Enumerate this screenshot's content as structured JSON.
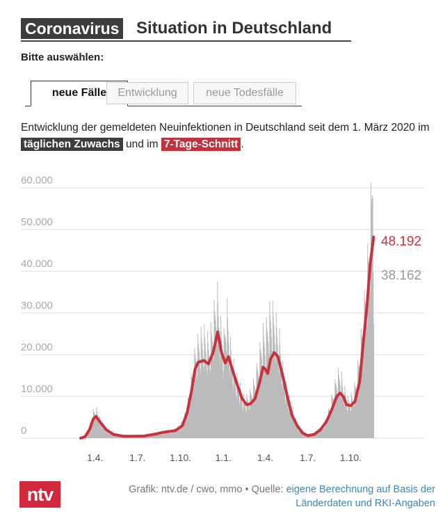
{
  "header": {
    "tag": "Coronavirus",
    "title": "Situation in Deutschland"
  },
  "selector": {
    "label": "Bitte auswählen:",
    "tabs": [
      {
        "label": "neue Fälle",
        "active": true
      },
      {
        "label": "Entwicklung",
        "active": false
      },
      {
        "label": "neue Todesfälle",
        "active": false
      }
    ]
  },
  "description": {
    "before": "Entwicklung der gemeldeten Neuinfektionen in Deutschland seit dem 1. März 2020 im ",
    "highlight_daily": "täglichen Zuwachs",
    "middle": " und im ",
    "highlight_avg": "7-Tage-Schnitt",
    "after": "."
  },
  "colors": {
    "daily_bars": "#bbbbbb",
    "average_line": "#c8323c",
    "grid": "#dddddd",
    "axis_text": "#aaaaaa"
  },
  "chart_data": {
    "type": "bar",
    "x_start": "2020-03-01",
    "x_end": "2021-11-20",
    "ylim": [
      0,
      65000
    ],
    "y_ticks": [
      0,
      10000,
      20000,
      30000,
      40000,
      50000,
      60000
    ],
    "y_tick_labels": [
      "0",
      "10.000",
      "20.000",
      "30.000",
      "40.000",
      "50.000",
      "60.000"
    ],
    "x_ticks": [
      "2020-04-01",
      "2020-07-01",
      "2020-10-01",
      "2021-01-01",
      "2021-04-01",
      "2021-07-01",
      "2021-10-01"
    ],
    "x_tick_labels": [
      "1.4.",
      "1.7.",
      "1.10.",
      "1.1.",
      "1.4.",
      "1.7.",
      "1.10."
    ],
    "grid": true,
    "series": [
      {
        "type": "bar",
        "points": [
          [
            "2020-03-01",
            0
          ],
          [
            "2020-03-10",
            400
          ],
          [
            "2020-03-20",
            2500
          ],
          [
            "2020-03-27",
            5500
          ],
          [
            "2020-04-03",
            6200
          ],
          [
            "2020-04-10",
            4500
          ],
          [
            "2020-04-20",
            2500
          ],
          [
            "2020-05-01",
            1200
          ],
          [
            "2020-05-15",
            700
          ],
          [
            "2020-06-01",
            500
          ],
          [
            "2020-06-20",
            700
          ],
          [
            "2020-07-01",
            450
          ],
          [
            "2020-07-20",
            600
          ],
          [
            "2020-08-10",
            1100
          ],
          [
            "2020-08-25",
            1500
          ],
          [
            "2020-09-10",
            1500
          ],
          [
            "2020-09-25",
            2200
          ],
          [
            "2020-10-05",
            3500
          ],
          [
            "2020-10-15",
            6500
          ],
          [
            "2020-10-25",
            13000
          ],
          [
            "2020-11-01",
            18000
          ],
          [
            "2020-11-10",
            21000
          ],
          [
            "2020-11-20",
            22000
          ],
          [
            "2020-12-01",
            20000
          ],
          [
            "2020-12-10",
            25000
          ],
          [
            "2020-12-18",
            31000
          ],
          [
            "2020-12-25",
            24000
          ],
          [
            "2021-01-01",
            20000
          ],
          [
            "2021-01-08",
            28000
          ],
          [
            "2021-01-15",
            20000
          ],
          [
            "2021-01-25",
            14000
          ],
          [
            "2021-02-05",
            11000
          ],
          [
            "2021-02-15",
            8000
          ],
          [
            "2021-02-25",
            9000
          ],
          [
            "2021-03-08",
            12000
          ],
          [
            "2021-03-18",
            17000
          ],
          [
            "2021-03-25",
            22000
          ],
          [
            "2021-04-01",
            22000
          ],
          [
            "2021-04-08",
            26000
          ],
          [
            "2021-04-15",
            27000
          ],
          [
            "2021-04-22",
            25000
          ],
          [
            "2021-05-01",
            21000
          ],
          [
            "2021-05-10",
            13000
          ],
          [
            "2021-05-20",
            9000
          ],
          [
            "2021-06-01",
            5000
          ],
          [
            "2021-06-10",
            2500
          ],
          [
            "2021-06-25",
            800
          ],
          [
            "2021-07-10",
            900
          ],
          [
            "2021-07-25",
            2000
          ],
          [
            "2021-08-05",
            3000
          ],
          [
            "2021-08-15",
            6000
          ],
          [
            "2021-08-25",
            10000
          ],
          [
            "2021-09-01",
            13000
          ],
          [
            "2021-09-08",
            14000
          ],
          [
            "2021-09-15",
            11000
          ],
          [
            "2021-09-25",
            8000
          ],
          [
            "2021-10-05",
            9000
          ],
          [
            "2021-10-12",
            12000
          ],
          [
            "2021-10-20",
            18000
          ],
          [
            "2021-10-27",
            25000
          ],
          [
            "2021-11-03",
            33000
          ],
          [
            "2021-11-08",
            40000
          ],
          [
            "2021-11-12",
            48000
          ],
          [
            "2021-11-14",
            50000
          ],
          [
            "2021-11-17",
            64000
          ],
          [
            "2021-11-19",
            38162
          ]
        ]
      },
      {
        "type": "line",
        "points": [
          [
            "2020-03-01",
            0
          ],
          [
            "2020-03-10",
            300
          ],
          [
            "2020-03-20",
            2000
          ],
          [
            "2020-03-28",
            4600
          ],
          [
            "2020-04-03",
            5200
          ],
          [
            "2020-04-12",
            3800
          ],
          [
            "2020-04-25",
            2000
          ],
          [
            "2020-05-10",
            900
          ],
          [
            "2020-06-01",
            450
          ],
          [
            "2020-06-25",
            450
          ],
          [
            "2020-07-15",
            500
          ],
          [
            "2020-08-10",
            1000
          ],
          [
            "2020-08-25",
            1400
          ],
          [
            "2020-09-20",
            1800
          ],
          [
            "2020-10-05",
            3000
          ],
          [
            "2020-10-15",
            6000
          ],
          [
            "2020-10-25",
            11500
          ],
          [
            "2020-11-01",
            16500
          ],
          [
            "2020-11-08",
            18200
          ],
          [
            "2020-11-20",
            18600
          ],
          [
            "2020-11-30",
            17800
          ],
          [
            "2020-12-10",
            20500
          ],
          [
            "2020-12-20",
            25500
          ],
          [
            "2020-12-28",
            20500
          ],
          [
            "2021-01-05",
            18000
          ],
          [
            "2021-01-12",
            19500
          ],
          [
            "2021-01-20",
            16500
          ],
          [
            "2021-01-30",
            13000
          ],
          [
            "2021-02-10",
            9500
          ],
          [
            "2021-02-20",
            8000
          ],
          [
            "2021-03-01",
            8300
          ],
          [
            "2021-03-10",
            9500
          ],
          [
            "2021-03-20",
            13500
          ],
          [
            "2021-03-27",
            17000
          ],
          [
            "2021-04-01",
            16500
          ],
          [
            "2021-04-06",
            15500
          ],
          [
            "2021-04-12",
            19000
          ],
          [
            "2021-04-20",
            20500
          ],
          [
            "2021-04-28",
            19500
          ],
          [
            "2021-05-08",
            15000
          ],
          [
            "2021-05-18",
            10000
          ],
          [
            "2021-05-28",
            5500
          ],
          [
            "2021-06-08",
            3000
          ],
          [
            "2021-06-20",
            1200
          ],
          [
            "2021-07-01",
            600
          ],
          [
            "2021-07-15",
            900
          ],
          [
            "2021-07-28",
            2000
          ],
          [
            "2021-08-10",
            4000
          ],
          [
            "2021-08-22",
            7000
          ],
          [
            "2021-09-01",
            10000
          ],
          [
            "2021-09-08",
            10800
          ],
          [
            "2021-09-15",
            10000
          ],
          [
            "2021-09-22",
            8000
          ],
          [
            "2021-10-01",
            7800
          ],
          [
            "2021-10-10",
            8800
          ],
          [
            "2021-10-20",
            13500
          ],
          [
            "2021-10-28",
            23000
          ],
          [
            "2021-11-05",
            32000
          ],
          [
            "2021-11-12",
            42000
          ],
          [
            "2021-11-19",
            48192
          ]
        ]
      }
    ],
    "callouts": [
      {
        "label": "48.192",
        "value": 48192,
        "series": "line"
      },
      {
        "label": "38.162",
        "value": 38162,
        "series": "bar"
      }
    ]
  },
  "footer": {
    "logo": "ntv",
    "credit_prefix": "Grafik: ntv.de / cwo, mmo • Quelle: ",
    "credit_link": "eigene Berechnung auf Basis der Länderdaten und RKI-Angaben"
  }
}
